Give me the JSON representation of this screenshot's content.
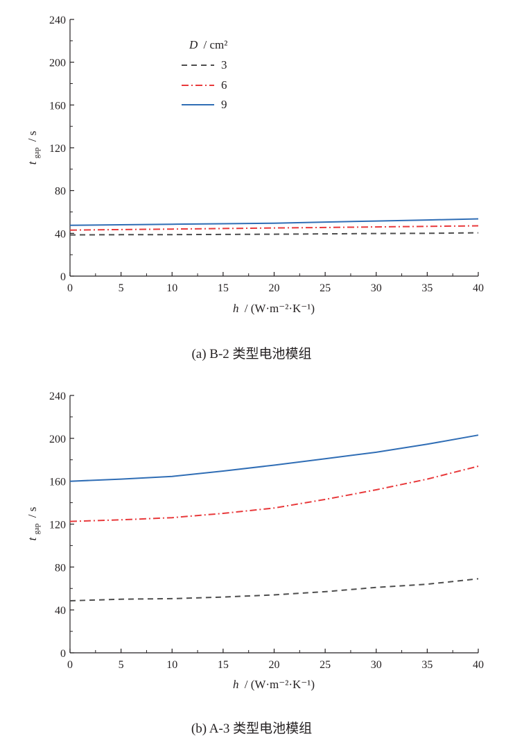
{
  "chart_data": [
    {
      "type": "line",
      "panel": "a",
      "caption": "(a)  B-2 类型电池模组",
      "xlabel_var": "h",
      "xlabel_unit": "/ (W·m⁻²·K⁻¹)",
      "ylabel_var": "t",
      "ylabel_sub": "gap",
      "ylabel_unit": "/ s",
      "xlim": [
        0,
        40
      ],
      "ylim": [
        0,
        240
      ],
      "xticks": [
        0,
        5,
        10,
        15,
        20,
        25,
        30,
        35,
        40
      ],
      "yticks": [
        0,
        40,
        80,
        120,
        160,
        200,
        240
      ],
      "grid": false,
      "legend": {
        "title_var": "D",
        "title_unit": "/ cm²",
        "placement": "top-left",
        "entries": [
          "3",
          "6",
          "9"
        ]
      },
      "series": [
        {
          "name": "3",
          "color": "#4d4d4d",
          "dash": "dashed",
          "x": [
            0,
            5,
            10,
            15,
            20,
            25,
            30,
            35,
            40
          ],
          "y": [
            38.5,
            38.7,
            38.8,
            39,
            39.2,
            39.5,
            39.8,
            40,
            40.5
          ]
        },
        {
          "name": "6",
          "color": "#e8393b",
          "dash": "dashdot",
          "x": [
            0,
            5,
            10,
            15,
            20,
            25,
            30,
            35,
            40
          ],
          "y": [
            43,
            43.5,
            44,
            44.5,
            45,
            45.5,
            46,
            46.5,
            47
          ]
        },
        {
          "name": "9",
          "color": "#2f6db5",
          "dash": "solid",
          "x": [
            0,
            5,
            10,
            15,
            20,
            25,
            30,
            35,
            40
          ],
          "y": [
            47.5,
            48,
            48.5,
            49,
            49.5,
            50.5,
            51.5,
            52.5,
            53.5
          ]
        }
      ]
    },
    {
      "type": "line",
      "panel": "b",
      "caption": "(b)  A-3 类型电池模组",
      "xlabel_var": "h",
      "xlabel_unit": "/ (W·m⁻²·K⁻¹)",
      "ylabel_var": "t",
      "ylabel_sub": "gap",
      "ylabel_unit": "/ s",
      "xlim": [
        0,
        40
      ],
      "ylim": [
        0,
        240
      ],
      "xticks": [
        0,
        5,
        10,
        15,
        20,
        25,
        30,
        35,
        40
      ],
      "yticks": [
        0,
        40,
        80,
        120,
        160,
        200,
        240
      ],
      "grid": false,
      "series": [
        {
          "name": "3",
          "color": "#4d4d4d",
          "dash": "dashed",
          "x": [
            0,
            5,
            10,
            15,
            20,
            25,
            30,
            35,
            40
          ],
          "y": [
            48.5,
            50,
            50.5,
            52,
            54,
            57,
            61,
            64,
            69
          ]
        },
        {
          "name": "6",
          "color": "#e8393b",
          "dash": "dashdot",
          "x": [
            0,
            5,
            10,
            15,
            20,
            25,
            30,
            35,
            40
          ],
          "y": [
            122.5,
            124,
            126,
            130,
            135,
            143,
            152,
            162,
            174
          ]
        },
        {
          "name": "9",
          "color": "#2f6db5",
          "dash": "solid",
          "x": [
            0,
            5,
            10,
            15,
            20,
            25,
            30,
            35,
            40
          ],
          "y": [
            160,
            162,
            164.5,
            169.5,
            175,
            181,
            187,
            194.5,
            203
          ]
        }
      ]
    }
  ]
}
